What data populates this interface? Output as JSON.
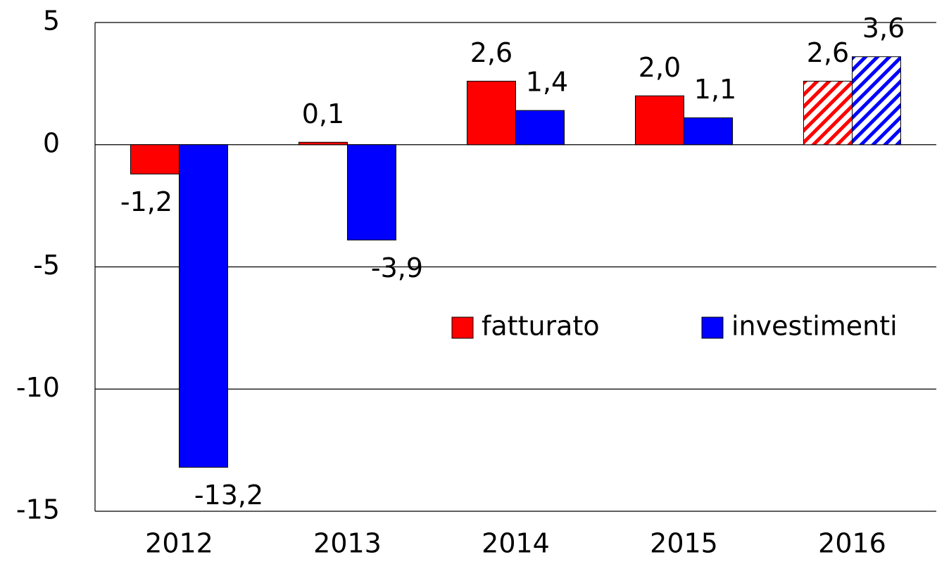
{
  "chart_data": {
    "type": "bar",
    "categories": [
      "2012",
      "2013",
      "2014",
      "2015",
      "2016"
    ],
    "series": [
      {
        "name": "fatturato",
        "color": "#ff0000",
        "values": [
          -1.2,
          0.1,
          2.6,
          2.0,
          2.6
        ],
        "value_labels": [
          "-1,2",
          "0,1",
          "2,6",
          "2,0",
          "2,6"
        ]
      },
      {
        "name": "investimenti",
        "color": "#0000ff",
        "values": [
          -13.2,
          -3.9,
          1.4,
          1.1,
          3.6
        ],
        "value_labels": [
          "-13,2",
          "-3,9",
          "1,4",
          "1,1",
          "3,6"
        ]
      }
    ],
    "hatched": [
      false,
      false,
      false,
      false,
      true
    ],
    "ylim": [
      -15,
      5
    ],
    "yticks": [
      5,
      0,
      -5,
      -10,
      -15
    ],
    "grid": true,
    "legend": "right"
  }
}
